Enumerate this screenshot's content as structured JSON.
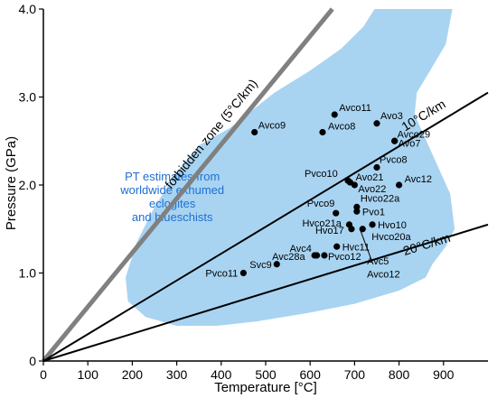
{
  "chart_data": {
    "type": "scatter",
    "xlabel": "Temperature [°C]",
    "ylabel": "Pressure (GPa)",
    "xlim": [
      0,
      1000
    ],
    "ylim": [
      0,
      4.0
    ],
    "x_ticks": [
      0,
      100,
      200,
      300,
      400,
      500,
      600,
      700,
      800,
      900
    ],
    "x_tick_labels": [
      "0",
      "100",
      "200",
      "300",
      "400",
      "500",
      "600",
      "700",
      "800",
      "900"
    ],
    "y_ticks": [
      0,
      1.0,
      2.0,
      3.0,
      4.0
    ],
    "y_tick_labels": [
      "0",
      "1.0",
      "2.0",
      "3.0",
      "4.0"
    ],
    "grid": false,
    "colors": {
      "region": "#a8d4f2",
      "forbidden_line": "#808080",
      "points": "#000000",
      "region_text": "#1f6fd1"
    },
    "region": {
      "label_lines": [
        "PT estimates from",
        "worldwide exhumed",
        "eclogites",
        "and blueschists"
      ],
      "polygon": [
        [
          190,
          0.68
        ],
        [
          185,
          0.95
        ],
        [
          210,
          1.35
        ],
        [
          250,
          1.75
        ],
        [
          300,
          2.15
        ],
        [
          350,
          2.45
        ],
        [
          420,
          2.65
        ],
        [
          470,
          2.85
        ],
        [
          520,
          3.05
        ],
        [
          600,
          3.3
        ],
        [
          670,
          3.55
        ],
        [
          720,
          3.8
        ],
        [
          745,
          4.0
        ],
        [
          920,
          4.0
        ],
        [
          905,
          3.6
        ],
        [
          870,
          3.3
        ],
        [
          840,
          3.05
        ],
        [
          835,
          2.8
        ],
        [
          875,
          2.35
        ],
        [
          915,
          1.9
        ],
        [
          925,
          1.5
        ],
        [
          905,
          1.3
        ],
        [
          875,
          1.1
        ],
        [
          860,
          0.95
        ],
        [
          800,
          0.8
        ],
        [
          700,
          0.65
        ],
        [
          600,
          0.55
        ],
        [
          480,
          0.45
        ],
        [
          390,
          0.4
        ],
        [
          300,
          0.4
        ],
        [
          230,
          0.5
        ]
      ]
    },
    "gradient_lines": [
      {
        "label": "10°C/km",
        "end": [
          1000,
          3.05
        ],
        "label_at": [
          860,
          2.75
        ]
      },
      {
        "label": "20°C/km",
        "end": [
          1000,
          1.55
        ],
        "label_at": [
          865,
          1.28
        ]
      }
    ],
    "forbidden_zone": {
      "label": "forbidden zone (5°C/km)",
      "end": [
        650,
        4.0
      ],
      "label_at": [
        385,
        2.55
      ]
    },
    "points": [
      {
        "name": "Avco11",
        "x": 655,
        "y": 2.8,
        "lx": 5,
        "ly": -4
      },
      {
        "name": "Avo3",
        "x": 750,
        "y": 2.7,
        "lx": 4,
        "ly": -5
      },
      {
        "name": "Avco9",
        "x": 475,
        "y": 2.6,
        "lx": 4,
        "ly": -4
      },
      {
        "name": "Avco8",
        "x": 628,
        "y": 2.6,
        "lx": 6,
        "ly": -3
      },
      {
        "name": "Avco29",
        "x": 790,
        "y": 2.5,
        "lx": 3,
        "ly": -4
      },
      {
        "name": "Avo7",
        "x": 790,
        "y": 2.5,
        "lx": 4,
        "ly": 6
      },
      {
        "name": "Pvco8",
        "x": 750,
        "y": 2.2,
        "lx": 3,
        "ly": -5
      },
      {
        "name": "Pvco10",
        "x": 685,
        "y": 2.05,
        "lx": -48,
        "ly": -4
      },
      {
        "name": "Avo21",
        "x": 690,
        "y": 2.03,
        "lx": 6,
        "ly": -2
      },
      {
        "name": "Avc12",
        "x": 800,
        "y": 2.0,
        "lx": 6,
        "ly": -3
      },
      {
        "name": "Avo22",
        "x": 700,
        "y": 2.0,
        "lx": 4,
        "ly": 8
      },
      {
        "name": "Pvco9",
        "x": 658,
        "y": 1.68,
        "lx": -32,
        "ly": -7
      },
      {
        "name": "Hvco22a",
        "x": 705,
        "y": 1.75,
        "lx": 4,
        "ly": -6
      },
      {
        "name": "Pvo1",
        "x": 705,
        "y": 1.7,
        "lx": 6,
        "ly": 4
      },
      {
        "name": "Hvco21a",
        "x": 688,
        "y": 1.55,
        "lx": -52,
        "ly": 2
      },
      {
        "name": "Hvo10",
        "x": 740,
        "y": 1.55,
        "lx": 6,
        "ly": 4
      },
      {
        "name": "Hvo17",
        "x": 693,
        "y": 1.5,
        "lx": -40,
        "ly": 5
      },
      {
        "name": "Hvco20a",
        "x": 718,
        "y": 1.5,
        "lx": 10,
        "ly": 12
      },
      {
        "name": "Hvc11",
        "x": 660,
        "y": 1.3,
        "lx": 6,
        "ly": 4
      },
      {
        "name": "Avc4",
        "x": 615,
        "y": 1.2,
        "lx": -30,
        "ly": -4
      },
      {
        "name": "Avc28a",
        "x": 610,
        "y": 1.2,
        "lx": -47,
        "ly": 5
      },
      {
        "name": "Pvco12",
        "x": 632,
        "y": 1.2,
        "lx": 4,
        "ly": 5
      },
      {
        "name": "Svc9",
        "x": 525,
        "y": 1.1,
        "lx": -30,
        "ly": 4
      },
      {
        "name": "Pvco11",
        "x": 450,
        "y": 1.0,
        "lx": -42,
        "ly": 4
      }
    ],
    "annotation_labels": [
      {
        "text": "Avc5",
        "at": [
          728,
          1.1
        ]
      },
      {
        "text": "Avco12",
        "at": [
          728,
          0.95
        ]
      }
    ],
    "leader_line": {
      "from": [
        712,
        1.5
      ],
      "to": [
        740,
        1.12
      ]
    }
  }
}
